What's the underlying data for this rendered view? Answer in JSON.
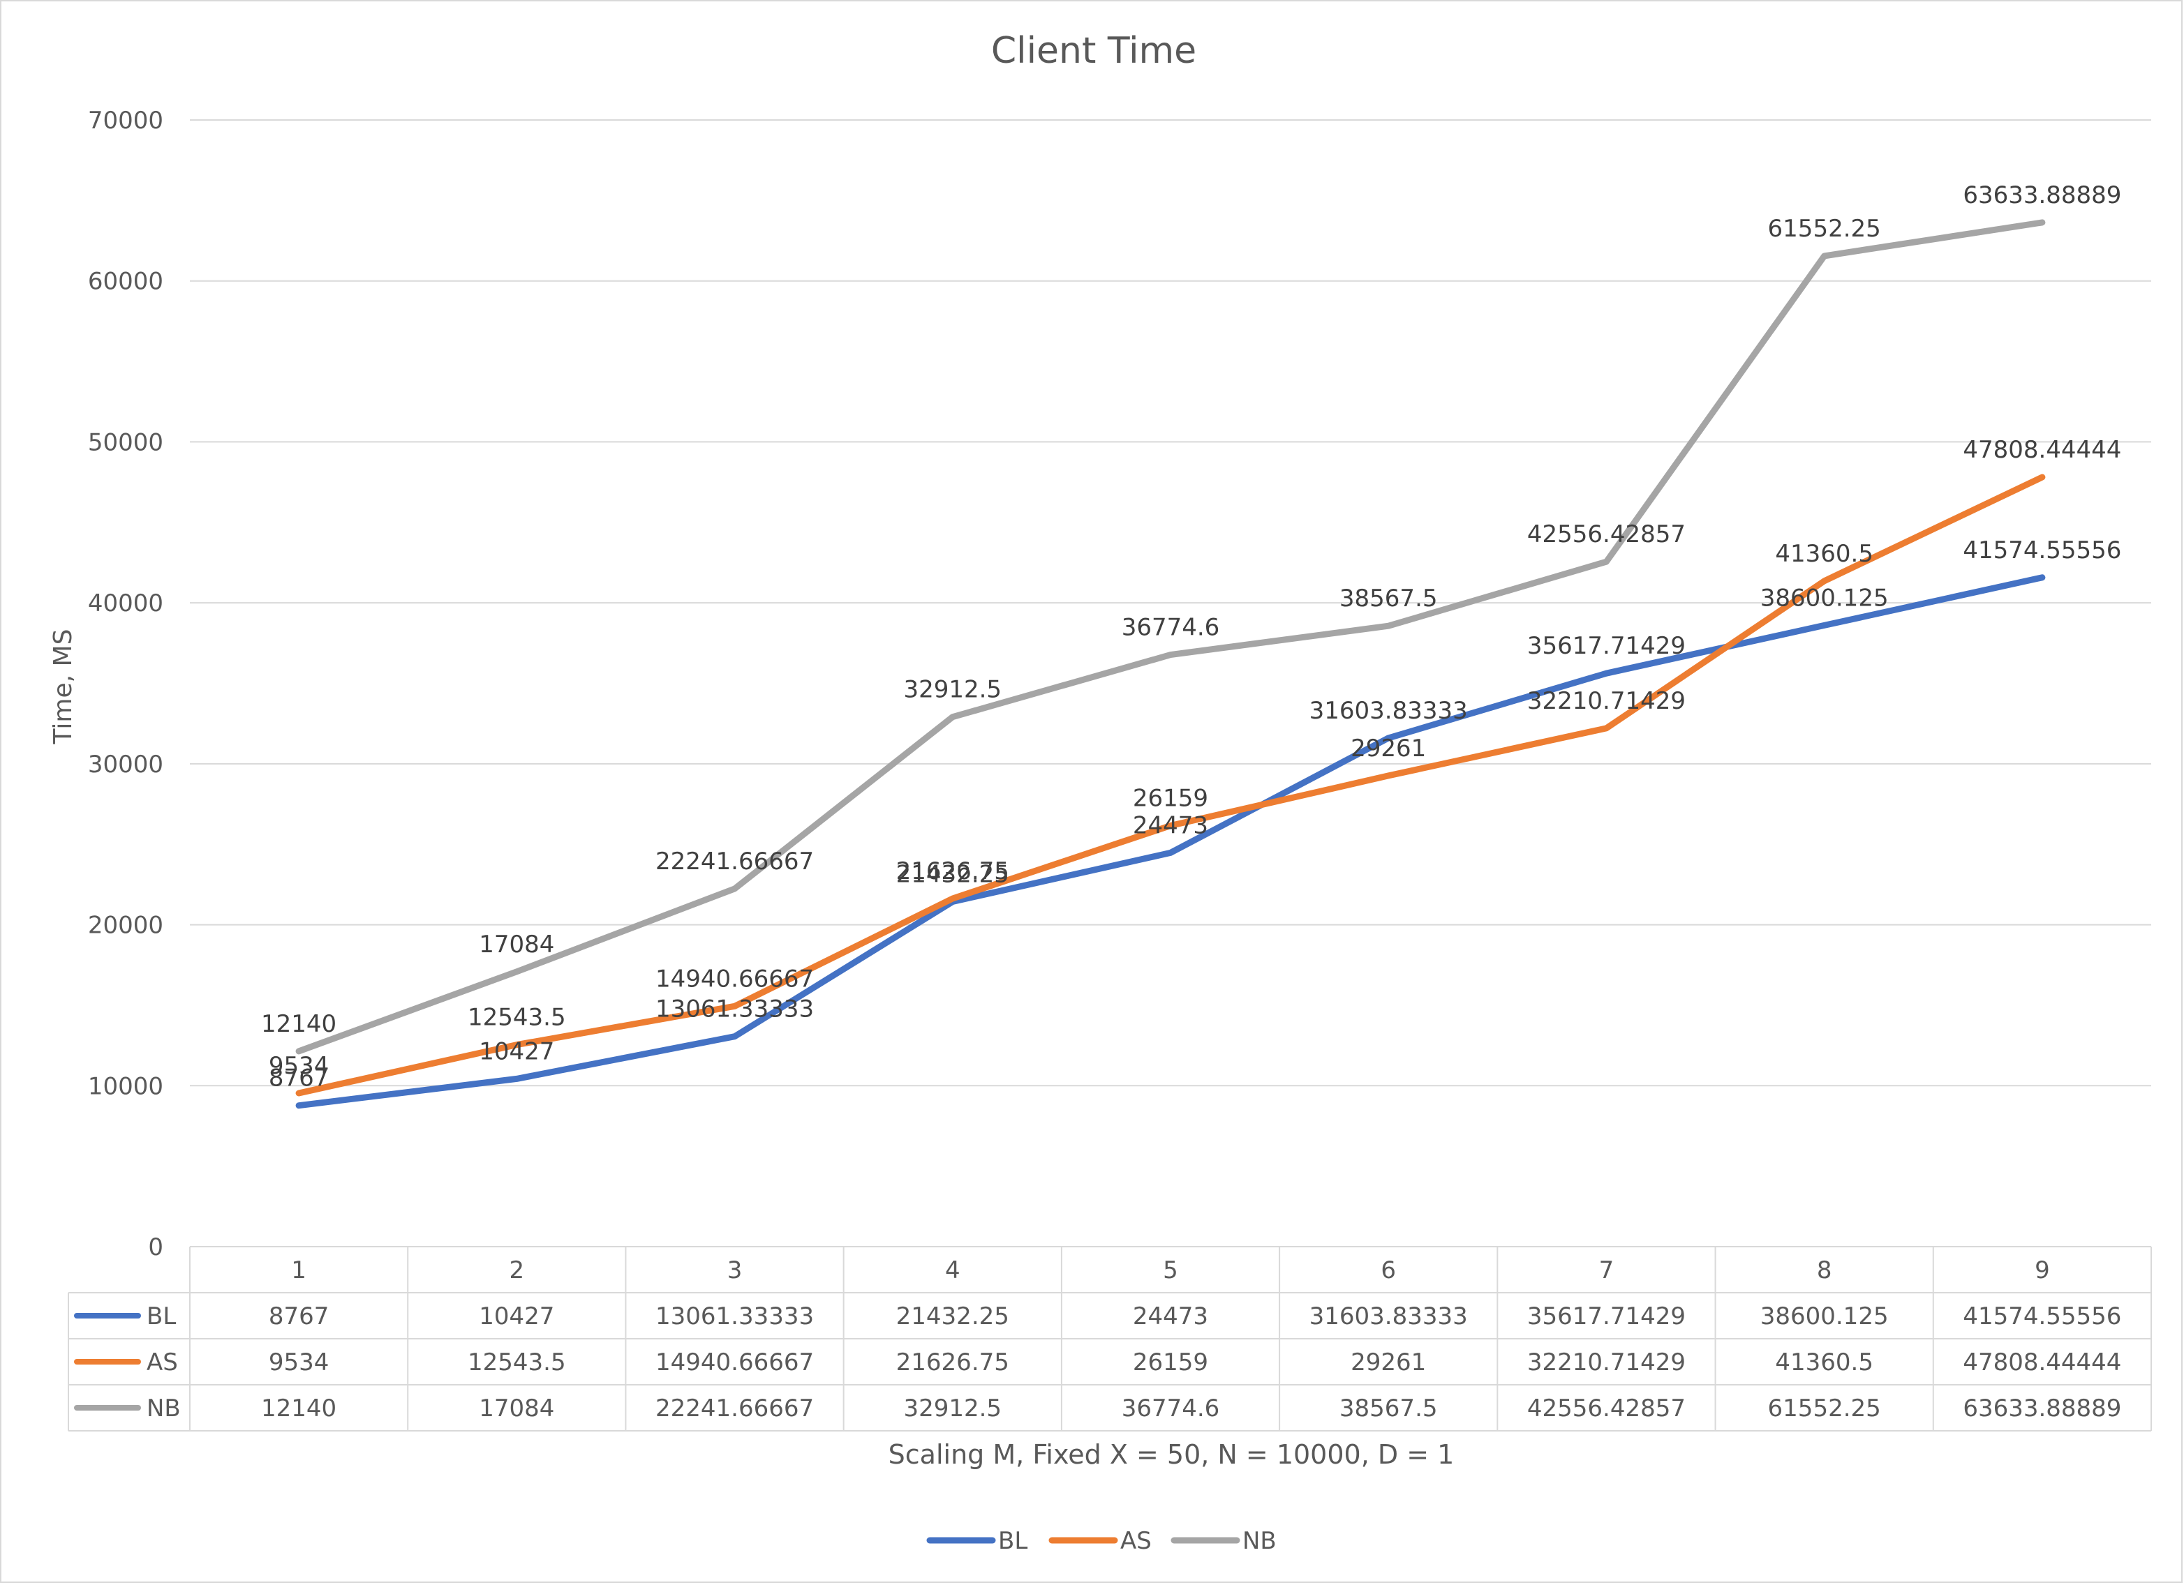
{
  "chart_data": {
    "type": "line",
    "title": "Client Time",
    "xlabel": "Scaling M, Fixed X = 50, N = 10000, D = 1",
    "ylabel": "Time, MS",
    "ylim": [
      0,
      70000
    ],
    "yticks": [
      0,
      10000,
      20000,
      30000,
      40000,
      50000,
      60000,
      70000
    ],
    "grid": true,
    "legend_position": "bottom",
    "data_table": true,
    "categories": [
      "1",
      "2",
      "3",
      "4",
      "5",
      "6",
      "7",
      "8",
      "9"
    ],
    "series": [
      {
        "name": "BL",
        "color": "#4472c4",
        "values": [
          8767,
          10427,
          13061.33333,
          21432.25,
          24473,
          31603.83333,
          35617.71429,
          38600.125,
          41574.55556
        ],
        "labels": [
          "8767",
          "10427",
          "13061.33333",
          "21432.25",
          "24473",
          "31603.83333",
          "35617.71429",
          "38600.125",
          "41574.55556"
        ]
      },
      {
        "name": "AS",
        "color": "#ed7d31",
        "values": [
          9534,
          12543.5,
          14940.66667,
          21626.75,
          26159,
          29261,
          32210.71429,
          41360.5,
          47808.44444
        ],
        "labels": [
          "9534",
          "12543.5",
          "14940.66667",
          "21626.75",
          "26159",
          "29261",
          "32210.71429",
          "41360.5",
          "47808.44444"
        ]
      },
      {
        "name": "NB",
        "color": "#a5a5a5",
        "values": [
          12140,
          17084,
          22241.66667,
          32912.5,
          36774.6,
          38567.5,
          42556.42857,
          61552.25,
          63633.88889
        ],
        "labels": [
          "12140",
          "17084",
          "22241.66667",
          "32912.5",
          "36774.6",
          "38567.5",
          "42556.42857",
          "61552.25",
          "63633.88889"
        ]
      }
    ]
  }
}
